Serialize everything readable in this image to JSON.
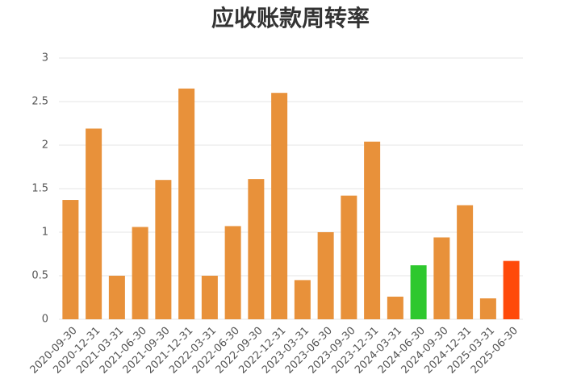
{
  "chart_data": {
    "type": "bar",
    "title": "应收账款周转率",
    "categories": [
      "2020-09-30",
      "2020-12-31",
      "2021-03-31",
      "2021-06-30",
      "2021-09-30",
      "2021-12-31",
      "2022-03-31",
      "2022-06-30",
      "2022-09-30",
      "2022-12-31",
      "2023-03-31",
      "2023-06-30",
      "2023-09-30",
      "2023-12-31",
      "2024-03-31",
      "2024-06-30",
      "2024-09-30",
      "2024-12-31",
      "2025-03-31",
      "2025-06-30"
    ],
    "values": [
      1.37,
      2.19,
      0.5,
      1.06,
      1.6,
      2.65,
      0.5,
      1.07,
      1.61,
      2.6,
      0.45,
      1.0,
      1.42,
      2.04,
      0.26,
      0.62,
      0.94,
      1.31,
      0.24,
      0.67
    ],
    "colors": [
      "#e8913a",
      "#e8913a",
      "#e8913a",
      "#e8913a",
      "#e8913a",
      "#e8913a",
      "#e8913a",
      "#e8913a",
      "#e8913a",
      "#e8913a",
      "#e8913a",
      "#e8913a",
      "#e8913a",
      "#e8913a",
      "#e8913a",
      "#2ec82e",
      "#e8913a",
      "#e8913a",
      "#e8913a",
      "#ff4a0a"
    ],
    "ylim": [
      0,
      3
    ],
    "yticks": [
      0,
      0.5,
      1,
      1.5,
      2,
      2.5,
      3
    ],
    "grid": true
  }
}
